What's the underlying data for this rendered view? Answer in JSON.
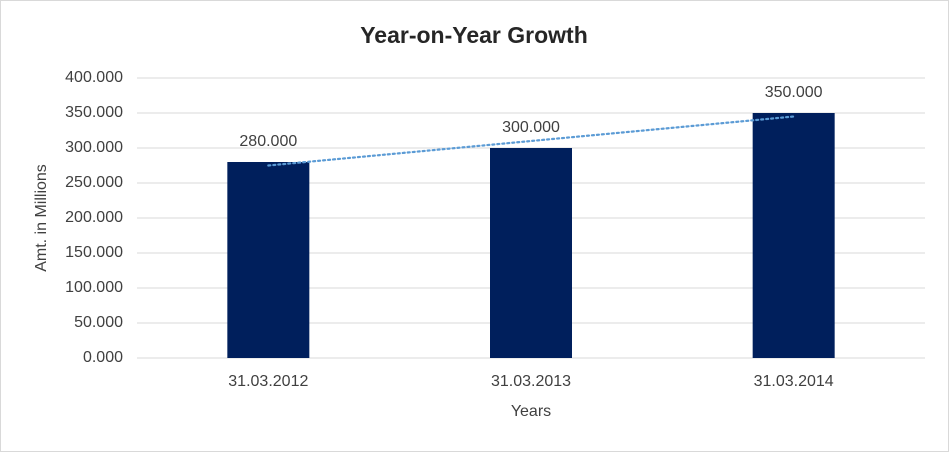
{
  "chart_data": {
    "type": "bar",
    "title": "Year-on-Year Growth",
    "x_label": "Years",
    "y_label": "Amt. in Millions",
    "categories": [
      "31.03.2012",
      "31.03.2013",
      "31.03.2014"
    ],
    "values": [
      280,
      300,
      350
    ],
    "value_labels": [
      "280.000",
      "300.000",
      "350.000"
    ],
    "color": "#001f5c",
    "trendline": "linear",
    "trendline_color": "#5b9bd5",
    "ylim": [
      0,
      400
    ],
    "yticks": [
      {
        "value": 0,
        "label": "0.000"
      },
      {
        "value": 50,
        "label": "50.000"
      },
      {
        "value": 100,
        "label": "100.000"
      },
      {
        "value": 150,
        "label": "150.000"
      },
      {
        "value": 200,
        "label": "200.000"
      },
      {
        "value": 250,
        "label": "250.000"
      },
      {
        "value": 300,
        "label": "300.000"
      },
      {
        "value": 350,
        "label": "350.000"
      },
      {
        "value": 400,
        "label": "400.000"
      }
    ],
    "grid": true
  }
}
